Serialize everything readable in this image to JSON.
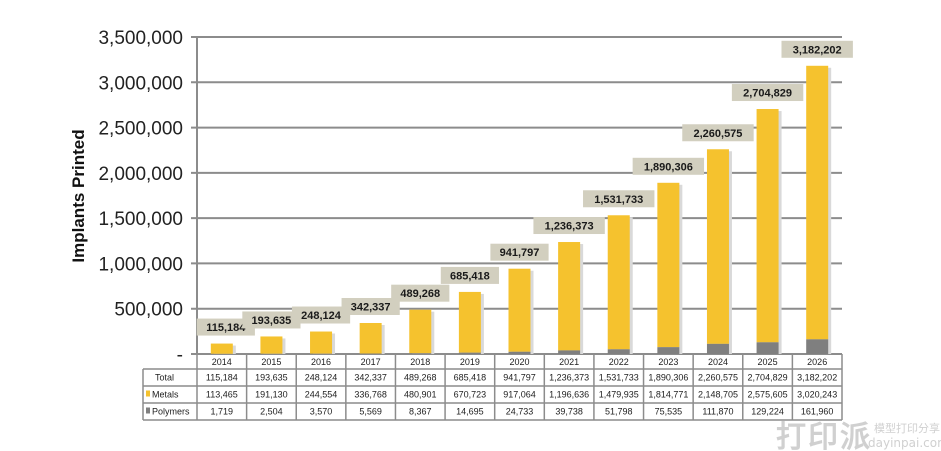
{
  "chart_data": {
    "type": "bar",
    "stacked": true,
    "title": "",
    "xlabel": "",
    "ylabel": "Implants Printed",
    "ylim": [
      0,
      3500000
    ],
    "yticks": [
      0,
      500000,
      1000000,
      1500000,
      2000000,
      2500000,
      3000000,
      3500000
    ],
    "ytick_labels": [
      "-",
      "500,000",
      "1,000,000",
      "1,500,000",
      "2,000,000",
      "2,500,000",
      "3,000,000",
      "3,500,000"
    ],
    "grid": true,
    "categories": [
      "2014",
      "2015",
      "2016",
      "2017",
      "2018",
      "2019",
      "2020",
      "2021",
      "2022",
      "2023",
      "2024",
      "2025",
      "2026"
    ],
    "series": [
      {
        "name": "Metals",
        "color": "#f5c22e",
        "values": [
          113465,
          191130,
          244554,
          336768,
          480901,
          670723,
          917064,
          1196636,
          1479935,
          1814771,
          2148705,
          2575605,
          3020243
        ]
      },
      {
        "name": "Polymers",
        "color": "#7f7f7f",
        "values": [
          1719,
          2504,
          3570,
          5569,
          8367,
          14695,
          24733,
          39738,
          51798,
          75535,
          111870,
          129224,
          161960
        ]
      }
    ],
    "totals": [
      115184,
      193635,
      248124,
      342337,
      489268,
      685418,
      941797,
      1236373,
      1531733,
      1890306,
      2260575,
      2704829,
      3182202
    ],
    "data_labels": [
      "115,184",
      "193,635",
      "248,124",
      "342,337",
      "489,268",
      "685,418",
      "941,797",
      "1,236,373",
      "1,531,733",
      "1,890,306",
      "2,260,575",
      "2,704,829",
      "3,182,202"
    ],
    "table": {
      "rows": [
        {
          "label": "Total",
          "swatch": null,
          "cells": [
            "115,184",
            "193,635",
            "248,124",
            "342,337",
            "489,268",
            "685,418",
            "941,797",
            "1,236,373",
            "1,531,733",
            "1,890,306",
            "2,260,575",
            "2,704,829",
            "3,182,202"
          ]
        },
        {
          "label": "Metals",
          "swatch": "#f5c22e",
          "cells": [
            "113,465",
            "191,130",
            "244,554",
            "336,768",
            "480,901",
            "670,723",
            "917,064",
            "1,196,636",
            "1,479,935",
            "1,814,771",
            "2,148,705",
            "2,575,605",
            "3,020,243"
          ]
        },
        {
          "label": "Polymers",
          "swatch": "#7f7f7f",
          "cells": [
            "1,719",
            "2,504",
            "3,570",
            "5,569",
            "8,367",
            "14,695",
            "24,733",
            "39,738",
            "51,798",
            "75,535",
            "111,870",
            "129,224",
            "161,960"
          ]
        }
      ]
    }
  },
  "colors": {
    "metals": "#f5c22e",
    "polymers": "#7f7f7f",
    "label_box": "#d2cfbf",
    "grid": "#8c8c8c"
  },
  "watermark": {
    "logo_text": "打印派",
    "cn_text": "模型打印分享",
    "url_text": "dayinpai.com"
  }
}
